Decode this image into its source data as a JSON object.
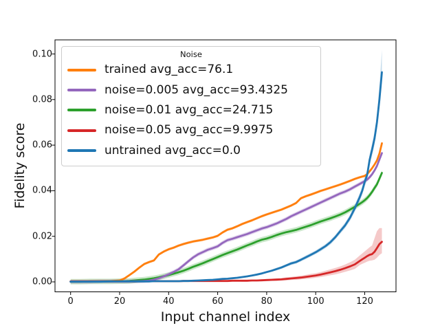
{
  "chart_data": {
    "type": "line",
    "title": "",
    "xlabel": "Input channel index",
    "ylabel": "Fidelity score",
    "grid": false,
    "xlim": [
      -6.4,
      132.8
    ],
    "ylim": [
      -0.0044,
      0.1062
    ],
    "xtick_values": [
      0,
      20,
      40,
      60,
      80,
      100,
      120
    ],
    "xtick_labels": [
      "0",
      "20",
      "40",
      "60",
      "80",
      "100",
      "120"
    ],
    "ytick_values": [
      0.0,
      0.02,
      0.04,
      0.06,
      0.08,
      0.1
    ],
    "ytick_labels": [
      "0.00",
      "0.02",
      "0.04",
      "0.06",
      "0.08",
      "0.10"
    ],
    "legend": {
      "title": "Noise",
      "position": "upper left"
    },
    "x": [
      0,
      4,
      8,
      12,
      16,
      20,
      22,
      24,
      26,
      28,
      30,
      32,
      34,
      36,
      38,
      40,
      42,
      44,
      46,
      48,
      50,
      52,
      54,
      56,
      58,
      60,
      62,
      64,
      66,
      68,
      70,
      72,
      74,
      76,
      78,
      80,
      82,
      84,
      86,
      88,
      90,
      92,
      94,
      96,
      98,
      100,
      102,
      104,
      106,
      108,
      110,
      112,
      114,
      116,
      118,
      119,
      120,
      121,
      122,
      123,
      124,
      125,
      126,
      127
    ],
    "series": [
      {
        "name": "trained",
        "label": "trained avg_acc=76.1",
        "avg_acc": 76.1,
        "color": "#ff7f0e",
        "band": 0.0006,
        "y": [
          0.0002,
          0.0002,
          0.0002,
          0.0003,
          0.0003,
          0.0006,
          0.0015,
          0.003,
          0.0045,
          0.0062,
          0.0078,
          0.0087,
          0.0094,
          0.012,
          0.0133,
          0.0143,
          0.015,
          0.0159,
          0.0166,
          0.0172,
          0.0177,
          0.0181,
          0.0185,
          0.019,
          0.0195,
          0.0202,
          0.0217,
          0.0229,
          0.0235,
          0.0244,
          0.0254,
          0.0262,
          0.027,
          0.0279,
          0.0288,
          0.0296,
          0.0303,
          0.031,
          0.0317,
          0.0326,
          0.0335,
          0.0346,
          0.0367,
          0.0376,
          0.0383,
          0.0391,
          0.0399,
          0.0406,
          0.0413,
          0.042,
          0.0427,
          0.0435,
          0.0443,
          0.0452,
          0.0459,
          0.0462,
          0.0465,
          0.0473,
          0.0485,
          0.0499,
          0.0515,
          0.0533,
          0.0563,
          0.0608
        ]
      },
      {
        "name": "noise-0005",
        "label": "noise=0.005 avg_acc=93.4325",
        "avg_acc": 93.4325,
        "color": "#9467bd",
        "band": 0.0009,
        "y": [
          0.0001,
          0.0001,
          0.0001,
          0.0002,
          0.0002,
          0.0002,
          0.0002,
          0.0002,
          0.0003,
          0.0003,
          0.0004,
          0.0005,
          0.001,
          0.0016,
          0.0024,
          0.0033,
          0.0043,
          0.0055,
          0.0072,
          0.009,
          0.0107,
          0.0121,
          0.0131,
          0.0141,
          0.0148,
          0.0156,
          0.0171,
          0.0183,
          0.0189,
          0.0196,
          0.0203,
          0.021,
          0.0218,
          0.0226,
          0.0234,
          0.024,
          0.0248,
          0.0256,
          0.0266,
          0.0276,
          0.0288,
          0.0298,
          0.0308,
          0.0318,
          0.0328,
          0.0338,
          0.0348,
          0.0358,
          0.0368,
          0.0378,
          0.0388,
          0.0396,
          0.0406,
          0.0418,
          0.043,
          0.0436,
          0.0442,
          0.0449,
          0.0459,
          0.0472,
          0.0489,
          0.0509,
          0.0537,
          0.0565
        ]
      },
      {
        "name": "noise-001",
        "label": "noise=0.01 avg_acc=24.715",
        "avg_acc": 24.715,
        "color": "#2ca02c",
        "band": 0.0012,
        "y": [
          0.0001,
          0.0001,
          0.0002,
          0.0002,
          0.0002,
          0.0003,
          0.0003,
          0.0004,
          0.0006,
          0.0008,
          0.001,
          0.0013,
          0.0016,
          0.002,
          0.0025,
          0.003,
          0.0036,
          0.0042,
          0.0049,
          0.0057,
          0.0066,
          0.0074,
          0.0082,
          0.0091,
          0.01,
          0.0109,
          0.0118,
          0.0126,
          0.0134,
          0.0142,
          0.0151,
          0.016,
          0.0168,
          0.0177,
          0.0185,
          0.019,
          0.0197,
          0.0205,
          0.0212,
          0.0218,
          0.0223,
          0.0228,
          0.0235,
          0.0242,
          0.0249,
          0.0257,
          0.0265,
          0.0272,
          0.0279,
          0.0287,
          0.0295,
          0.0305,
          0.0317,
          0.0329,
          0.0343,
          0.035,
          0.0358,
          0.0368,
          0.038,
          0.0395,
          0.0412,
          0.0428,
          0.0453,
          0.0478
        ]
      },
      {
        "name": "noise-005",
        "label": "noise=0.05 avg_acc=9.9975",
        "avg_acc": 9.9975,
        "color": "#d62728",
        "band_upper": [
          0.0002,
          0.0002,
          0.0002,
          0.0002,
          0.0002,
          0.0002,
          0.0002,
          0.0002,
          0.0002,
          0.0002,
          0.0002,
          0.0002,
          0.0002,
          0.0002,
          0.0002,
          0.0002,
          0.0002,
          0.0002,
          0.0002,
          0.0002,
          0.0002,
          0.0002,
          0.0002,
          0.0002,
          0.0002,
          0.0003,
          0.0003,
          0.0003,
          0.0003,
          0.0003,
          0.0004,
          0.0004,
          0.0004,
          0.0004,
          0.0005,
          0.0005,
          0.0005,
          0.0006,
          0.0006,
          0.0007,
          0.0007,
          0.0008,
          0.0008,
          0.0009,
          0.001,
          0.001,
          0.0011,
          0.0012,
          0.0013,
          0.0014,
          0.0015,
          0.0016,
          0.0018,
          0.002,
          0.0024,
          0.0026,
          0.0028,
          0.003,
          0.0033,
          0.0038,
          0.006,
          0.0075,
          0.007,
          0.006
        ],
        "band_lower": [
          0.0002,
          0.0002,
          0.0002,
          0.0002,
          0.0002,
          0.0002,
          0.0002,
          0.0002,
          0.0002,
          0.0002,
          0.0002,
          0.0002,
          0.0002,
          0.0002,
          0.0002,
          0.0002,
          0.0002,
          0.0002,
          0.0002,
          0.0002,
          0.0002,
          0.0002,
          0.0002,
          0.0002,
          0.0002,
          0.0003,
          0.0003,
          0.0003,
          0.0003,
          0.0003,
          0.0004,
          0.0004,
          0.0004,
          0.0004,
          0.0005,
          0.0005,
          0.0005,
          0.0006,
          0.0006,
          0.0007,
          0.0007,
          0.0008,
          0.0008,
          0.0009,
          0.001,
          0.001,
          0.0011,
          0.0012,
          0.0013,
          0.0014,
          0.0015,
          0.0016,
          0.0018,
          0.002,
          0.0018,
          0.002,
          0.0022,
          0.0024,
          0.0026,
          0.0028,
          0.0035,
          0.0042,
          0.0048,
          0.005
        ],
        "y": [
          0.0002,
          0.0002,
          0.0002,
          0.0002,
          0.0002,
          0.0002,
          0.0002,
          0.0002,
          0.0002,
          0.0003,
          0.0003,
          0.0003,
          0.0003,
          0.0003,
          0.0003,
          0.0003,
          0.0003,
          0.0003,
          0.0004,
          0.0004,
          0.0004,
          0.0004,
          0.0004,
          0.0004,
          0.0004,
          0.0004,
          0.0004,
          0.0004,
          0.0005,
          0.0005,
          0.0005,
          0.0005,
          0.0006,
          0.0006,
          0.0007,
          0.0008,
          0.0009,
          0.001,
          0.0011,
          0.0013,
          0.0015,
          0.0017,
          0.0019,
          0.0022,
          0.0025,
          0.0028,
          0.0032,
          0.0037,
          0.0042,
          0.0047,
          0.0053,
          0.006,
          0.0068,
          0.0077,
          0.0092,
          0.0099,
          0.0106,
          0.0113,
          0.0119,
          0.0122,
          0.0132,
          0.0148,
          0.0166,
          0.0176
        ]
      },
      {
        "name": "untrained",
        "label": "untrained avg_acc=0.0",
        "avg_acc": 0.0,
        "color": "#1f77b4",
        "band_upper": [
          0.0002,
          0.0002,
          0.0002,
          0.0002,
          0.0002,
          0.0002,
          0.0002,
          0.0002,
          0.0002,
          0.0002,
          0.0002,
          0.0002,
          0.0002,
          0.0002,
          0.0002,
          0.0002,
          0.0002,
          0.0002,
          0.0002,
          0.0002,
          0.0002,
          0.0002,
          0.0002,
          0.0002,
          0.0002,
          0.0003,
          0.0003,
          0.0003,
          0.0003,
          0.0004,
          0.0004,
          0.0004,
          0.0004,
          0.0005,
          0.0005,
          0.0005,
          0.0005,
          0.0006,
          0.0006,
          0.0006,
          0.0007,
          0.0007,
          0.0007,
          0.0008,
          0.0008,
          0.0008,
          0.0009,
          0.0009,
          0.001,
          0.001,
          0.0011,
          0.0012,
          0.0013,
          0.0015,
          0.0017,
          0.0018,
          0.002,
          0.0022,
          0.0024,
          0.0026,
          0.0028,
          0.0032,
          0.006,
          0.0098
        ],
        "band_lower": [
          0.0002,
          0.0002,
          0.0002,
          0.0002,
          0.0002,
          0.0002,
          0.0002,
          0.0002,
          0.0002,
          0.0002,
          0.0002,
          0.0002,
          0.0002,
          0.0002,
          0.0002,
          0.0002,
          0.0002,
          0.0002,
          0.0002,
          0.0002,
          0.0002,
          0.0002,
          0.0002,
          0.0002,
          0.0002,
          0.0003,
          0.0003,
          0.0003,
          0.0003,
          0.0004,
          0.0004,
          0.0004,
          0.0004,
          0.0005,
          0.0005,
          0.0005,
          0.0005,
          0.0006,
          0.0006,
          0.0006,
          0.0007,
          0.0007,
          0.0007,
          0.0008,
          0.0008,
          0.0008,
          0.0009,
          0.0009,
          0.001,
          0.001,
          0.0011,
          0.0012,
          0.0013,
          0.0015,
          0.0017,
          0.0018,
          0.002,
          0.0022,
          0.0024,
          0.0026,
          0.0028,
          0.003,
          0.0032,
          0.0035
        ],
        "y": [
          0.0001,
          0.0001,
          0.0001,
          0.0001,
          0.0002,
          0.0002,
          0.0002,
          0.0002,
          0.0002,
          0.0002,
          0.0002,
          0.0002,
          0.0003,
          0.0003,
          0.0003,
          0.0003,
          0.0003,
          0.0003,
          0.0004,
          0.0004,
          0.0005,
          0.0006,
          0.0007,
          0.0008,
          0.0009,
          0.0011,
          0.0013,
          0.0014,
          0.0016,
          0.0018,
          0.0021,
          0.0024,
          0.0028,
          0.0032,
          0.0037,
          0.0043,
          0.0049,
          0.0056,
          0.0063,
          0.0072,
          0.0081,
          0.0087,
          0.0097,
          0.0108,
          0.0119,
          0.013,
          0.0143,
          0.0157,
          0.0174,
          0.0196,
          0.0222,
          0.0248,
          0.0281,
          0.0324,
          0.0373,
          0.04,
          0.0439,
          0.047,
          0.0535,
          0.058,
          0.063,
          0.07,
          0.08,
          0.092
        ]
      }
    ]
  }
}
